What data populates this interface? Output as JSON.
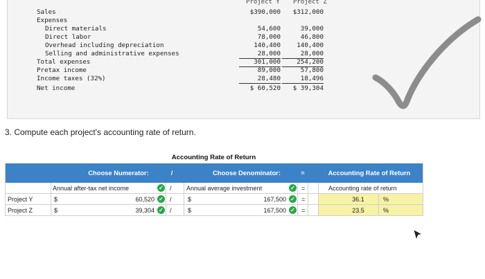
{
  "statement": {
    "header_col1": "Project Y",
    "header_col2": "Project Z",
    "rows": [
      {
        "label": "Sales",
        "v1": "$390,000",
        "v2": "$312,000",
        "indent": 0
      },
      {
        "label": "Expenses",
        "v1": "",
        "v2": "",
        "indent": 0
      },
      {
        "label": "Direct materials",
        "v1": "54,600",
        "v2": "39,000",
        "indent": 2
      },
      {
        "label": "Direct labor",
        "v1": "78,000",
        "v2": "46,800",
        "indent": 2
      },
      {
        "label": "Overhead including depreciation",
        "v1": "140,400",
        "v2": "140,400",
        "indent": 2
      },
      {
        "label": "Selling and administrative expenses",
        "v1": "28,000",
        "v2": "28,000",
        "indent": 2
      },
      {
        "label": "Total expenses",
        "v1": "301,000",
        "v2": "254,200",
        "indent": 0
      },
      {
        "label": "Pretax income",
        "v1": "89,000",
        "v2": "57,800",
        "indent": 0
      },
      {
        "label": "Income taxes (32%)",
        "v1": "28,480",
        "v2": "18,496",
        "indent": 0
      },
      {
        "label": "Net income",
        "v1": "$ 60,520",
        "v2": "$ 39,304",
        "indent": 0
      }
    ]
  },
  "question": "3. Compute each project's accounting rate of return.",
  "table": {
    "title": "Accounting Rate of Return",
    "header_numerator": "Choose Numerator:",
    "header_div": "/",
    "header_denominator": "Choose Denominator:",
    "header_eq": "=",
    "header_result": "Accounting Rate of Return",
    "label_row": {
      "numerator": "Annual after-tax net income",
      "div": "/",
      "denominator": "Annual average investment",
      "eq": "=",
      "result": "Accounting rate of return"
    },
    "rows": [
      {
        "name": "Project Y",
        "cur1": "$",
        "num": "60,520",
        "div": "/",
        "cur2": "$",
        "den": "167,500",
        "eq": "=",
        "rate": "36.1",
        "pct": "%"
      },
      {
        "name": "Project Z",
        "cur1": "$",
        "num": "39,304",
        "div": "/",
        "cur2": "$",
        "den": "167,500",
        "eq": "=",
        "rate": "23.5",
        "pct": "%"
      }
    ]
  },
  "colors": {
    "header_blue": "#3b82c7",
    "check_green": "#27a848",
    "highlight_yellow": "#f7f2a5"
  },
  "icons": {
    "valid": "check-circle-icon",
    "mark": "checkmark-icon",
    "pointer": "cursor-icon"
  }
}
